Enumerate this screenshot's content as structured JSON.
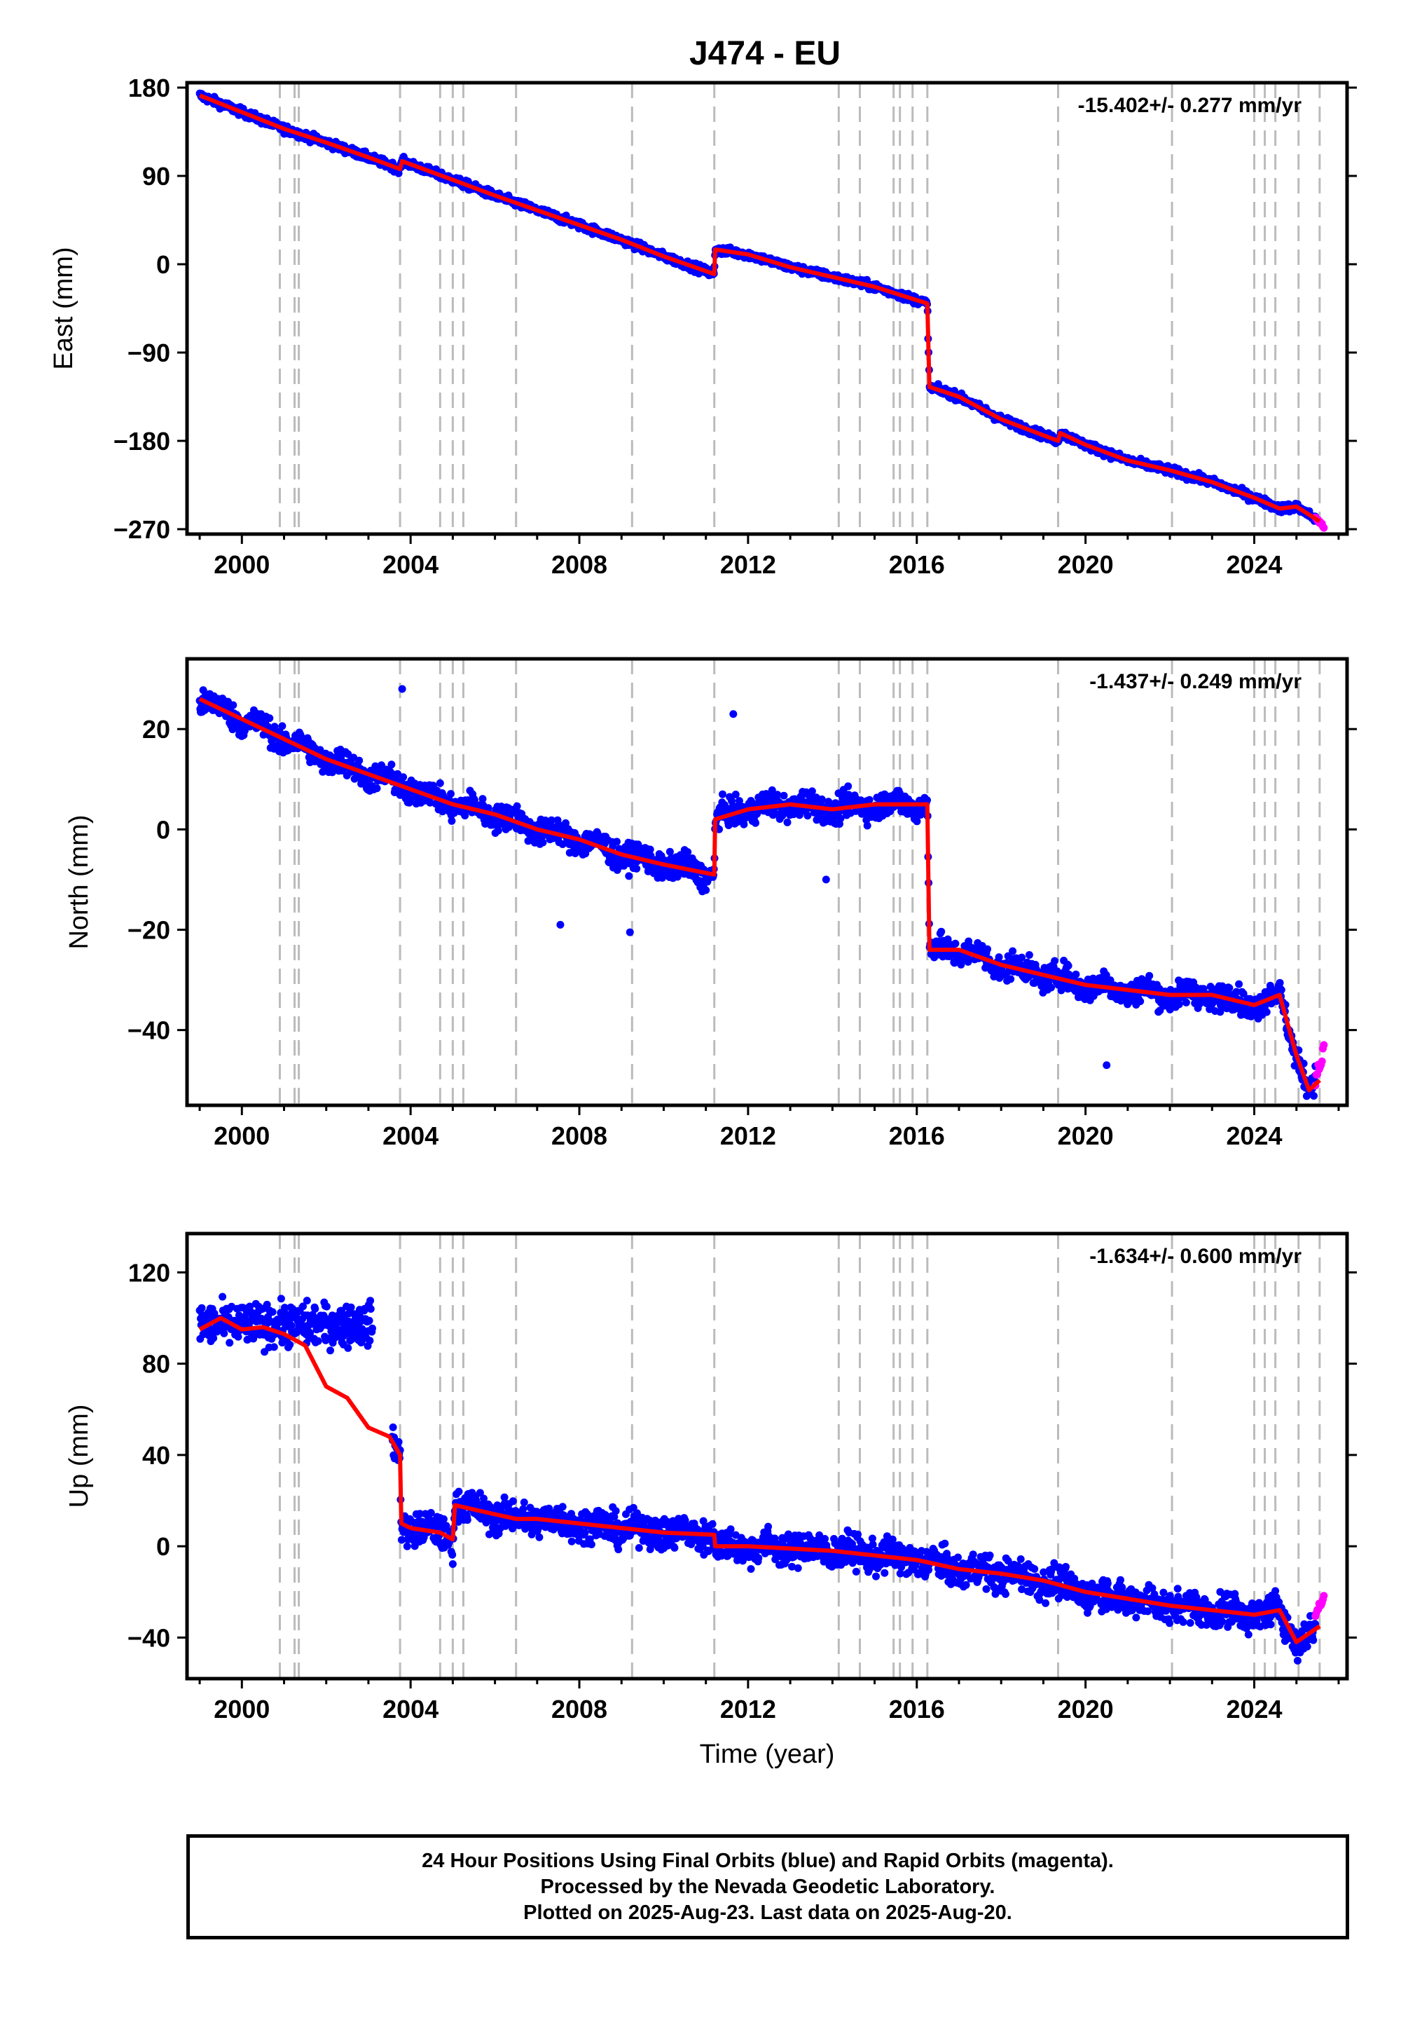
{
  "title": "J474 - EU",
  "xlabel": "Time (year)",
  "colors": {
    "final_orbits": "#0000ff",
    "rapid_orbits": "#ff00ff",
    "model_fit": "#ff0000",
    "event_lines": "#bbbbbb",
    "frame": "#000000"
  },
  "caption": {
    "line1": "24 Hour Positions Using Final Orbits (blue) and Rapid Orbits (magenta).",
    "line2": "Processed by the Nevada Geodetic Laboratory.",
    "line3": "Plotted on 2025-Aug-23. Last data on 2025-Aug-20."
  },
  "chart_data": [
    {
      "type": "scatter",
      "ylabel": "East (mm)",
      "rate": "-15.402+/- 0.277 mm/yr",
      "xlim": [
        1998.7,
        2026.2
      ],
      "ylim": [
        -275,
        185
      ],
      "x_ticks": [
        2000,
        2004,
        2008,
        2012,
        2016,
        2020,
        2024
      ],
      "y_ticks": [
        180,
        90,
        0,
        -90,
        -180,
        -270
      ],
      "y_tick_labels": [
        "180",
        "90",
        "0",
        "−90",
        "−180",
        "−270"
      ],
      "event_lines": [
        2000.9,
        2001.25,
        2001.35,
        2003.75,
        2004.7,
        2005.0,
        2005.25,
        2006.5,
        2009.25,
        2011.2,
        2014.15,
        2014.65,
        2015.45,
        2015.6,
        2015.9,
        2016.25,
        2019.35,
        2022.05,
        2024.0,
        2024.25,
        2024.5,
        2025.05,
        2025.55
      ],
      "fit": [
        [
          1999.0,
          172
        ],
        [
          2000.0,
          155
        ],
        [
          2001.0,
          138
        ],
        [
          2002.0,
          124
        ],
        [
          2003.0,
          109
        ],
        [
          2003.75,
          97
        ],
        [
          2003.8,
          105
        ],
        [
          2005.0,
          86
        ],
        [
          2006.0,
          70
        ],
        [
          2007.0,
          55
        ],
        [
          2008.0,
          40
        ],
        [
          2009.0,
          25
        ],
        [
          2010.0,
          8
        ],
        [
          2011.2,
          -10
        ],
        [
          2011.22,
          15
        ],
        [
          2012.0,
          10
        ],
        [
          2013.0,
          -3
        ],
        [
          2014.0,
          -13
        ],
        [
          2015.0,
          -23
        ],
        [
          2016.25,
          -40
        ],
        [
          2016.3,
          -125
        ],
        [
          2017.0,
          -135
        ],
        [
          2018.0,
          -158
        ],
        [
          2019.35,
          -180
        ],
        [
          2019.4,
          -172
        ],
        [
          2020.0,
          -184
        ],
        [
          2021.0,
          -200
        ],
        [
          2022.0,
          -210
        ],
        [
          2023.0,
          -222
        ],
        [
          2024.0,
          -238
        ],
        [
          2024.6,
          -249
        ],
        [
          2025.0,
          -247
        ],
        [
          2025.55,
          -262
        ]
      ],
      "noise": 4,
      "rapid": {
        "x0": 2025.45,
        "x1": 2025.65,
        "y0": -258,
        "y1": -268
      }
    },
    {
      "type": "scatter",
      "ylabel": "North (mm)",
      "rate": "-1.437+/- 0.249 mm/yr",
      "xlim": [
        1998.7,
        2026.2
      ],
      "ylim": [
        -55,
        34
      ],
      "x_ticks": [
        2000,
        2004,
        2008,
        2012,
        2016,
        2020,
        2024
      ],
      "y_ticks": [
        20,
        0,
        -20,
        -40
      ],
      "y_tick_labels": [
        "20",
        "0",
        "−20",
        "−40"
      ],
      "event_lines": [
        2000.9,
        2001.25,
        2001.35,
        2003.75,
        2004.7,
        2005.0,
        2005.25,
        2006.5,
        2009.25,
        2011.2,
        2014.15,
        2014.65,
        2015.45,
        2015.6,
        2015.9,
        2016.25,
        2019.35,
        2022.05,
        2024.0,
        2024.25,
        2024.5,
        2025.05,
        2025.55
      ],
      "fit": [
        [
          1999.0,
          26
        ],
        [
          2000.0,
          22
        ],
        [
          2001.0,
          18
        ],
        [
          2002.0,
          14
        ],
        [
          2003.0,
          11
        ],
        [
          2004.0,
          8
        ],
        [
          2005.0,
          5
        ],
        [
          2006.0,
          3
        ],
        [
          2007.0,
          0
        ],
        [
          2008.0,
          -2
        ],
        [
          2009.0,
          -5
        ],
        [
          2010.0,
          -7
        ],
        [
          2011.2,
          -9
        ],
        [
          2011.22,
          2
        ],
        [
          2012.0,
          4
        ],
        [
          2013.0,
          5
        ],
        [
          2014.0,
          4
        ],
        [
          2015.0,
          5
        ],
        [
          2016.25,
          5
        ],
        [
          2016.3,
          -24
        ],
        [
          2017.0,
          -24
        ],
        [
          2018.0,
          -27
        ],
        [
          2019.0,
          -29
        ],
        [
          2020.0,
          -31
        ],
        [
          2021.0,
          -32
        ],
        [
          2022.0,
          -33
        ],
        [
          2023.0,
          -33
        ],
        [
          2024.0,
          -35
        ],
        [
          2024.6,
          -33
        ],
        [
          2025.0,
          -45
        ],
        [
          2025.3,
          -52
        ],
        [
          2025.55,
          -50
        ]
      ],
      "noise": 2.5,
      "seasonal": 2.5,
      "outliers": [
        [
          2011.65,
          23
        ],
        [
          2003.8,
          28
        ],
        [
          2007.55,
          -19
        ],
        [
          2009.2,
          -20.5
        ],
        [
          2020.5,
          -47
        ],
        [
          2013.85,
          -10
        ]
      ],
      "rapid": {
        "x0": 2025.45,
        "x1": 2025.65,
        "y0": -50,
        "y1": -44
      }
    },
    {
      "type": "scatter",
      "ylabel": "Up (mm)",
      "rate": "-1.634+/- 0.600 mm/yr",
      "xlim": [
        1998.7,
        2026.2
      ],
      "ylim": [
        -58,
        137
      ],
      "x_ticks": [
        2000,
        2004,
        2008,
        2012,
        2016,
        2020,
        2024
      ],
      "y_ticks": [
        120,
        80,
        40,
        0,
        -40
      ],
      "y_tick_labels": [
        "120",
        "80",
        "40",
        "0",
        "−40"
      ],
      "event_lines": [
        2000.9,
        2001.25,
        2001.35,
        2003.75,
        2004.7,
        2005.0,
        2005.25,
        2006.5,
        2009.25,
        2011.2,
        2014.15,
        2014.65,
        2015.45,
        2015.6,
        2015.9,
        2016.25,
        2019.35,
        2022.05,
        2024.0,
        2024.25,
        2024.5,
        2025.05,
        2025.55
      ],
      "fit": [
        [
          1999.0,
          95
        ],
        [
          1999.5,
          100
        ],
        [
          2000.0,
          95
        ],
        [
          2000.5,
          96
        ],
        [
          2001.0,
          93
        ],
        [
          2001.5,
          88
        ],
        [
          2002.0,
          70
        ],
        [
          2002.5,
          65
        ],
        [
          2003.0,
          52
        ],
        [
          2003.5,
          48
        ],
        [
          2003.75,
          40
        ],
        [
          2003.78,
          10
        ],
        [
          2004.0,
          8
        ],
        [
          2004.7,
          6
        ],
        [
          2005.0,
          3
        ],
        [
          2005.05,
          18
        ],
        [
          2006.0,
          14
        ],
        [
          2006.5,
          12
        ],
        [
          2007.0,
          12
        ],
        [
          2008.0,
          10
        ],
        [
          2009.0,
          8
        ],
        [
          2010.0,
          6
        ],
        [
          2011.2,
          5
        ],
        [
          2011.22,
          0
        ],
        [
          2012.0,
          0
        ],
        [
          2013.0,
          -1
        ],
        [
          2014.0,
          -2
        ],
        [
          2015.0,
          -4
        ],
        [
          2016.0,
          -6
        ],
        [
          2017.0,
          -10
        ],
        [
          2018.0,
          -12
        ],
        [
          2019.0,
          -15
        ],
        [
          2020.0,
          -20
        ],
        [
          2021.0,
          -23
        ],
        [
          2022.0,
          -26
        ],
        [
          2023.0,
          -28
        ],
        [
          2024.0,
          -30
        ],
        [
          2024.6,
          -28
        ],
        [
          2025.0,
          -42
        ],
        [
          2025.55,
          -35
        ]
      ],
      "noise": 7,
      "seasonal": 4,
      "gap": [
        2003.1,
        2003.55
      ],
      "early_segment": {
        "x1": 2003.1,
        "y": 97,
        "noise": 9
      },
      "rapid": {
        "x0": 2025.45,
        "x1": 2025.65,
        "y0": -30,
        "y1": -22
      }
    }
  ]
}
